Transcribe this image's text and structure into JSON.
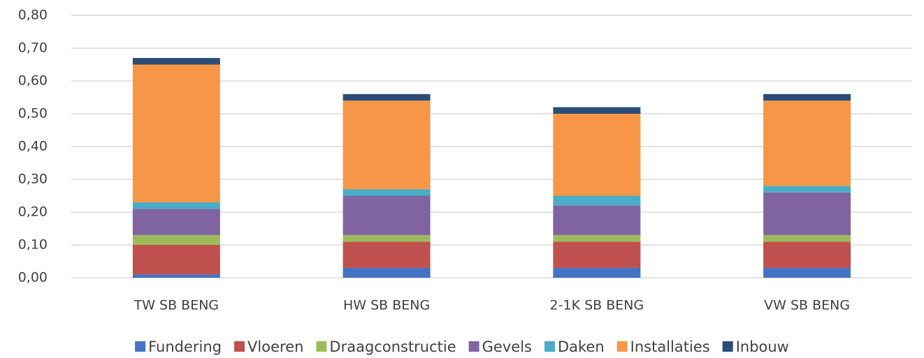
{
  "chart_data": {
    "type": "stacked_bar",
    "categories": [
      "TW SB BENG",
      "HW SB BENG",
      "2-1K SB BENG",
      "VW SB BENG"
    ],
    "series": [
      {
        "name": "Fundering",
        "color": "#4472c4",
        "values": [
          0.01,
          0.03,
          0.03,
          0.03
        ]
      },
      {
        "name": "Vloeren",
        "color": "#c0504d",
        "values": [
          0.09,
          0.08,
          0.08,
          0.08
        ]
      },
      {
        "name": "Draagconstructie",
        "color": "#9bbb59",
        "values": [
          0.03,
          0.02,
          0.02,
          0.02
        ]
      },
      {
        "name": "Gevels",
        "color": "#8064a2",
        "values": [
          0.08,
          0.12,
          0.09,
          0.13
        ]
      },
      {
        "name": "Daken",
        "color": "#4bacc6",
        "values": [
          0.02,
          0.02,
          0.03,
          0.02
        ]
      },
      {
        "name": "Installaties",
        "color": "#f79646",
        "values": [
          0.42,
          0.27,
          0.25,
          0.26
        ]
      },
      {
        "name": "Inbouw",
        "color": "#2c4d75",
        "values": [
          0.02,
          0.02,
          0.02,
          0.02
        ]
      }
    ],
    "ylim": [
      0,
      0.8
    ],
    "yticks": [
      {
        "value": 0,
        "label": "0,00"
      },
      {
        "value": 0.1,
        "label": "0,10"
      },
      {
        "value": 0.2,
        "label": "0,20"
      },
      {
        "value": 0.3,
        "label": "0,30"
      },
      {
        "value": 0.4,
        "label": "0,40"
      },
      {
        "value": 0.5,
        "label": "0,50"
      },
      {
        "value": 0.6,
        "label": "0,60"
      },
      {
        "value": 0.7,
        "label": "0,70"
      },
      {
        "value": 0.8,
        "label": "0,80"
      }
    ],
    "grid": true,
    "legend": "bottom"
  }
}
